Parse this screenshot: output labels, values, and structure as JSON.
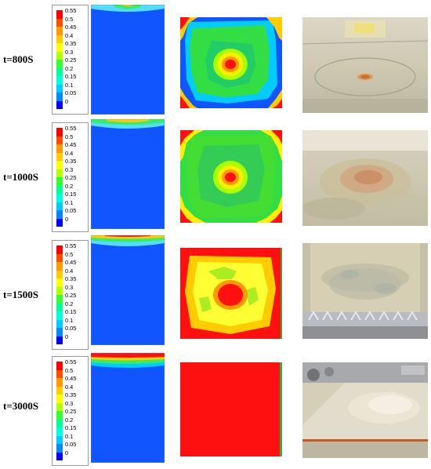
{
  "legend": {
    "labels": [
      "0.55",
      "0.5",
      "0.45",
      "0.4",
      "0.35",
      "0.3",
      "0.25",
      "0.2",
      "0.15",
      "0.1",
      "0.05",
      "0"
    ],
    "colors": [
      "#ff0000",
      "#ff4d00",
      "#ff9900",
      "#ffcc00",
      "#ffff00",
      "#b3ff00",
      "#33ff33",
      "#00ff99",
      "#00ffdd",
      "#00ccff",
      "#0088ff",
      "#0000ff"
    ]
  },
  "rows": [
    {
      "time": "t=800S"
    },
    {
      "time": "t=1000S"
    },
    {
      "time": "t=1500S"
    },
    {
      "time": "t=3000S"
    }
  ],
  "colors": {
    "field_blue": "#1155ff",
    "field_red": "#ff1010",
    "field_yellow": "#ffff33",
    "field_green": "#33dd44",
    "photo_base": "#d8d2bf"
  }
}
